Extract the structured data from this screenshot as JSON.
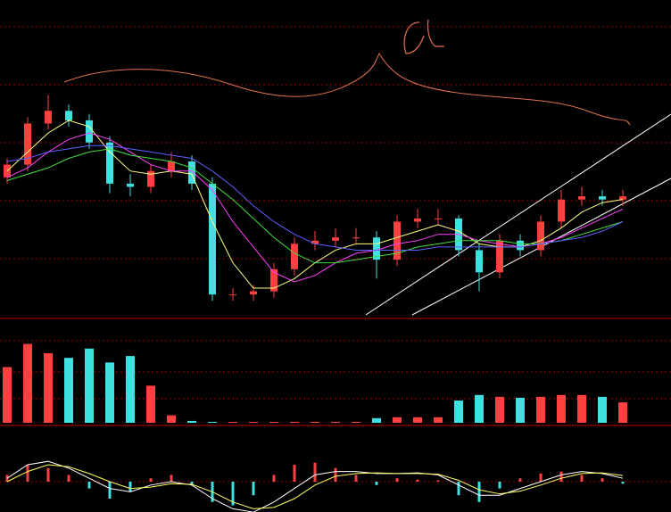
{
  "chart_data": [
    {
      "type": "candlestick",
      "ylim": [
        0,
        100
      ],
      "up_color": "#ff4040",
      "down_color": "#40e0e0",
      "open": [
        44,
        48,
        61,
        65,
        62,
        55,
        42,
        41,
        46,
        49,
        42,
        7,
        7,
        8,
        15,
        23,
        24,
        25,
        25,
        18,
        30,
        31,
        31,
        21,
        14,
        24,
        21,
        30,
        37,
        38,
        37
      ],
      "high": [
        50,
        63,
        70,
        67,
        64,
        57,
        45,
        48,
        52,
        51,
        44,
        9,
        10,
        17,
        25,
        27,
        28,
        28,
        27,
        32,
        34,
        34,
        32,
        23,
        26,
        26,
        32,
        40,
        41,
        40,
        40
      ],
      "low": [
        42,
        46,
        59,
        60,
        53,
        39,
        38,
        39,
        44,
        40,
        5,
        5,
        5,
        6,
        13,
        21,
        22,
        23,
        12,
        16,
        28,
        29,
        19,
        8,
        12,
        19,
        19,
        28,
        35,
        35,
        35
      ],
      "close": [
        48,
        61,
        65,
        62,
        55,
        42,
        41,
        46,
        49,
        42,
        7,
        7,
        8,
        15,
        23,
        24,
        25,
        25,
        18,
        30,
        31,
        31,
        21,
        14,
        24,
        21,
        30,
        37,
        38,
        37,
        38
      ],
      "series": [
        {
          "color": "#ffff80",
          "values": [
            46,
            52,
            58,
            62,
            60,
            52,
            46,
            45,
            46,
            45,
            30,
            17,
            9,
            9,
            12,
            17,
            21,
            23,
            23,
            25,
            27,
            29,
            27,
            23,
            22,
            22,
            24,
            28,
            33,
            36,
            37
          ]
        },
        {
          "color": "#ff40ff",
          "values": [
            44,
            47,
            52,
            56,
            58,
            56,
            52,
            48,
            46,
            46,
            40,
            30,
            22,
            14,
            11,
            13,
            17,
            20,
            21,
            23,
            24,
            26,
            26,
            24,
            23,
            22,
            23,
            25,
            28,
            31,
            34
          ]
        },
        {
          "color": "#40e040",
          "values": [
            43,
            45,
            47,
            50,
            52,
            53,
            51,
            50,
            49,
            47,
            42,
            37,
            31,
            25,
            20,
            17,
            17,
            18,
            19,
            20,
            22,
            23,
            24,
            24,
            24,
            23,
            23,
            24,
            26,
            28,
            30
          ]
        },
        {
          "color": "#6060ff",
          "values": [
            49,
            50,
            52,
            53,
            54,
            54,
            53,
            52,
            51,
            50,
            46,
            41,
            35,
            30,
            26,
            23,
            22,
            21,
            21,
            21,
            21,
            22,
            22,
            22,
            22,
            22,
            23,
            24,
            25,
            27,
            30
          ]
        }
      ]
    },
    {
      "type": "volume",
      "ylim": [
        0,
        100
      ],
      "up_color": "#ff4040",
      "down_color": "#40e0e0",
      "values": [
        60,
        85,
        75,
        70,
        80,
        65,
        72,
        40,
        8,
        2,
        1,
        1,
        1,
        1,
        1,
        1,
        1,
        1,
        5,
        6,
        6,
        6,
        24,
        30,
        28,
        27,
        28,
        30,
        30,
        28,
        22
      ]
    },
    {
      "type": "macd",
      "ylim": [
        -50,
        50
      ],
      "up_color": "#ff4040",
      "down_color": "#40e0e0",
      "values": [
        10,
        25,
        20,
        10,
        -10,
        -25,
        -15,
        5,
        10,
        -5,
        -30,
        -35,
        -20,
        10,
        25,
        28,
        20,
        10,
        -5,
        5,
        3,
        2,
        -20,
        -30,
        -10,
        5,
        12,
        15,
        10,
        5,
        -3
      ],
      "series": [
        {
          "color": "#ffffff",
          "values": [
            5,
            25,
            30,
            20,
            5,
            -10,
            -15,
            -5,
            0,
            -5,
            -25,
            -40,
            -45,
            -30,
            -10,
            10,
            15,
            15,
            12,
            12,
            13,
            10,
            -5,
            -20,
            -20,
            -10,
            0,
            10,
            15,
            12,
            5
          ]
        },
        {
          "color": "#ffff60",
          "values": [
            0,
            15,
            25,
            22,
            12,
            0,
            -10,
            -8,
            -3,
            -4,
            -15,
            -30,
            -40,
            -38,
            -25,
            -5,
            8,
            12,
            13,
            12,
            12,
            11,
            2,
            -12,
            -18,
            -14,
            -5,
            5,
            12,
            13,
            9
          ]
        }
      ]
    }
  ]
}
